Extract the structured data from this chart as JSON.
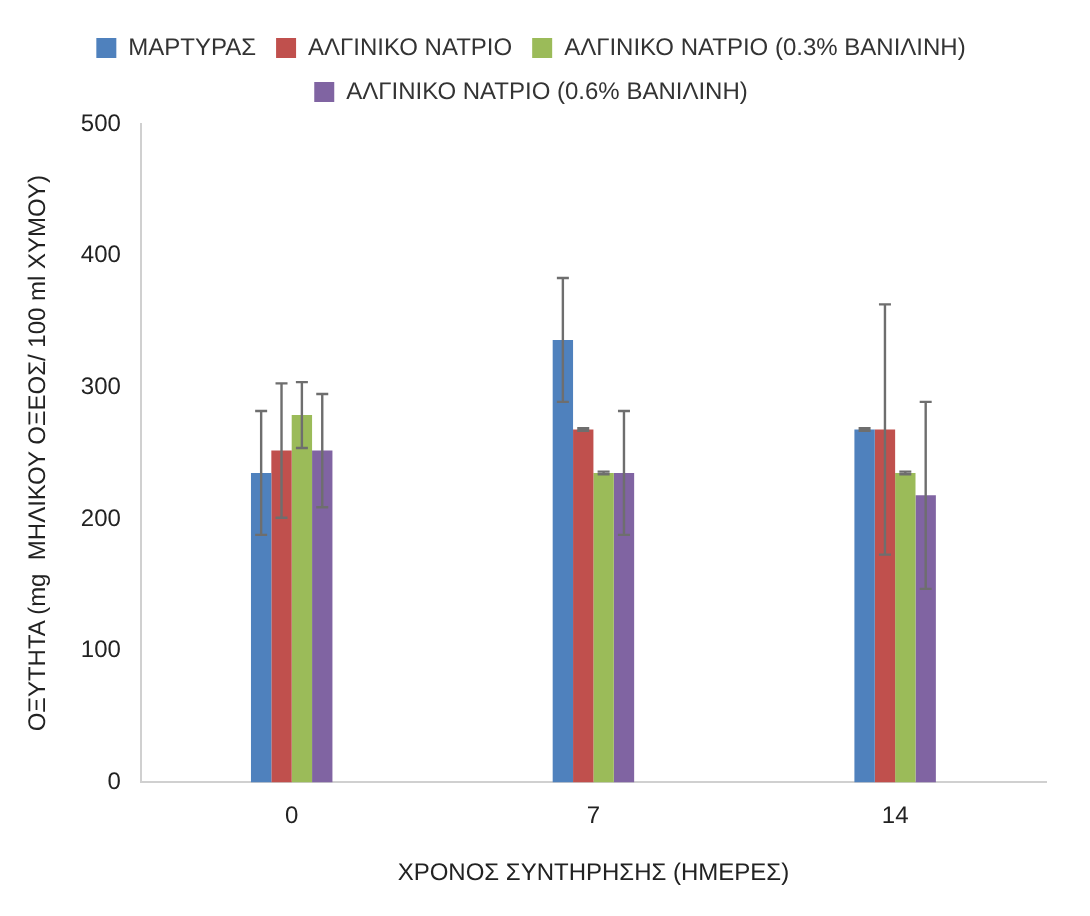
{
  "chart_data": {
    "type": "bar",
    "xlabel": "ΧΡΟΝΟΣ ΣΥΝΤΗΡΗΣΗΣ (ΗΜΕΡΕΣ)",
    "ylabel": "ΟΞΥΤΗΤΑ (mg  ΜΗΛΙΚΟΥ ΟΞΕΟΣ/ 100 ml ΧΥΜΟΥ)",
    "categories": [
      "0",
      "7",
      "14"
    ],
    "series": [
      {
        "name": "ΜΑΡΤΥΡΑΣ",
        "color": "#4f81bd",
        "values": [
          235,
          336,
          268
        ],
        "errors": [
          47,
          47,
          1
        ]
      },
      {
        "name": "ΑΛΓΙΝΙΚΟ ΝΑΤΡΙΟ",
        "color": "#c0504d",
        "values": [
          252,
          268,
          268
        ],
        "errors": [
          51,
          1,
          95
        ]
      },
      {
        "name": "ΑΛΓΙΝΙΚΟ ΝΑΤΡΙΟ (0.3% ΒΑΝΙΛΙΝΗ)",
        "color": "#9bbb59",
        "values": [
          279,
          235,
          235
        ],
        "errors": [
          25,
          1,
          1
        ]
      },
      {
        "name": "ΑΛΓΙΝΙΚΟ ΝΑΤΡΙΟ (0.6% ΒΑΝΙΛΙΝΗ)",
        "color": "#8064a2",
        "values": [
          252,
          235,
          218
        ],
        "errors": [
          43,
          47,
          71
        ]
      }
    ],
    "ylim": [
      0,
      500
    ],
    "yticks": [
      0,
      100,
      200,
      300,
      400,
      500
    ],
    "grid": false,
    "legend": "top"
  }
}
